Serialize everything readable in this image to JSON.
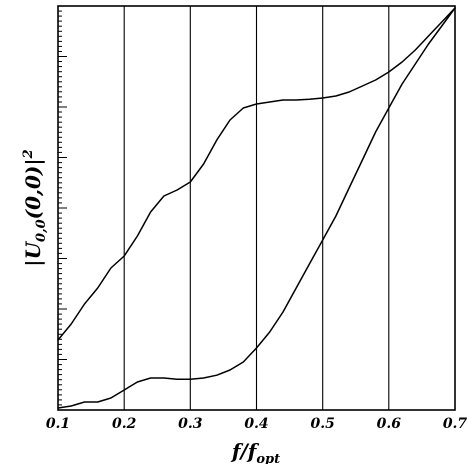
{
  "chart_data": {
    "type": "line",
    "xlabel": "f/f_opt",
    "ylabel": "|U_{0,0}(0,0)|^2",
    "xlim": [
      0.1,
      0.7
    ],
    "x_ticks": [
      "0.1",
      "0.2",
      "0.3",
      "0.4",
      "0.5",
      "0.6",
      "0.7"
    ],
    "y_ticks_labeled": false,
    "grid": {
      "vertical": true,
      "horizontal": false
    },
    "series": [
      {
        "x": [
          0.1,
          0.12,
          0.14,
          0.16,
          0.18,
          0.2,
          0.22,
          0.24,
          0.26,
          0.28,
          0.3,
          0.32,
          0.34,
          0.36,
          0.38,
          0.4,
          0.42,
          0.44,
          0.46,
          0.48,
          0.5,
          0.52,
          0.54,
          0.56,
          0.58,
          0.6,
          0.62,
          0.64,
          0.66,
          0.68,
          0.7
        ],
        "values": [
          0.17,
          0.21,
          0.26,
          0.3,
          0.35,
          0.38,
          0.43,
          0.49,
          0.53,
          0.545,
          0.565,
          0.61,
          0.67,
          0.72,
          0.75,
          0.76,
          0.765,
          0.77,
          0.77,
          0.772,
          0.775,
          0.78,
          0.79,
          0.805,
          0.82,
          0.84,
          0.865,
          0.895,
          0.93,
          0.965,
          1.0
        ]
      },
      {
        "x": [
          0.1,
          0.12,
          0.14,
          0.16,
          0.18,
          0.2,
          0.22,
          0.24,
          0.26,
          0.28,
          0.3,
          0.32,
          0.34,
          0.36,
          0.38,
          0.4,
          0.42,
          0.44,
          0.46,
          0.48,
          0.5,
          0.52,
          0.54,
          0.56,
          0.58,
          0.6,
          0.62,
          0.64,
          0.66,
          0.68,
          0.7
        ],
        "values": [
          0.0,
          0.005,
          0.015,
          0.015,
          0.025,
          0.045,
          0.065,
          0.075,
          0.075,
          0.072,
          0.072,
          0.075,
          0.082,
          0.095,
          0.115,
          0.15,
          0.19,
          0.24,
          0.3,
          0.36,
          0.42,
          0.48,
          0.55,
          0.62,
          0.69,
          0.75,
          0.81,
          0.86,
          0.91,
          0.955,
          1.0
        ]
      }
    ]
  }
}
